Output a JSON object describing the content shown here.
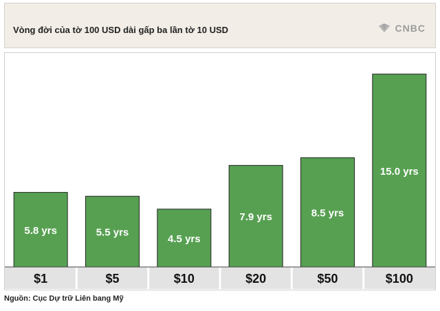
{
  "header": {
    "title": "Vòng đời của tờ 100 USD dài gấp ba lần tờ 10 USD",
    "logo_text": "CNBC"
  },
  "source": "Nguồn: Cục Dự trữ Liên bang Mỹ",
  "colors": {
    "bar": "#57a052",
    "bar_border": "#222222",
    "axis_band": "#e3e3e3",
    "header_bg": "#f2ede7"
  },
  "chart_data": {
    "type": "bar",
    "categories": [
      "$1",
      "$5",
      "$10",
      "$20",
      "$50",
      "$100"
    ],
    "values": [
      5.8,
      5.5,
      4.5,
      7.9,
      8.5,
      15.0
    ],
    "data_labels": [
      "5.8 yrs",
      "5.5 yrs",
      "4.5 yrs",
      "7.9 yrs",
      "8.5 yrs",
      "15.0 yrs"
    ],
    "title": "",
    "xlabel": "",
    "ylabel": "",
    "ylim": [
      0,
      16
    ],
    "grid": false,
    "legend": "none"
  }
}
